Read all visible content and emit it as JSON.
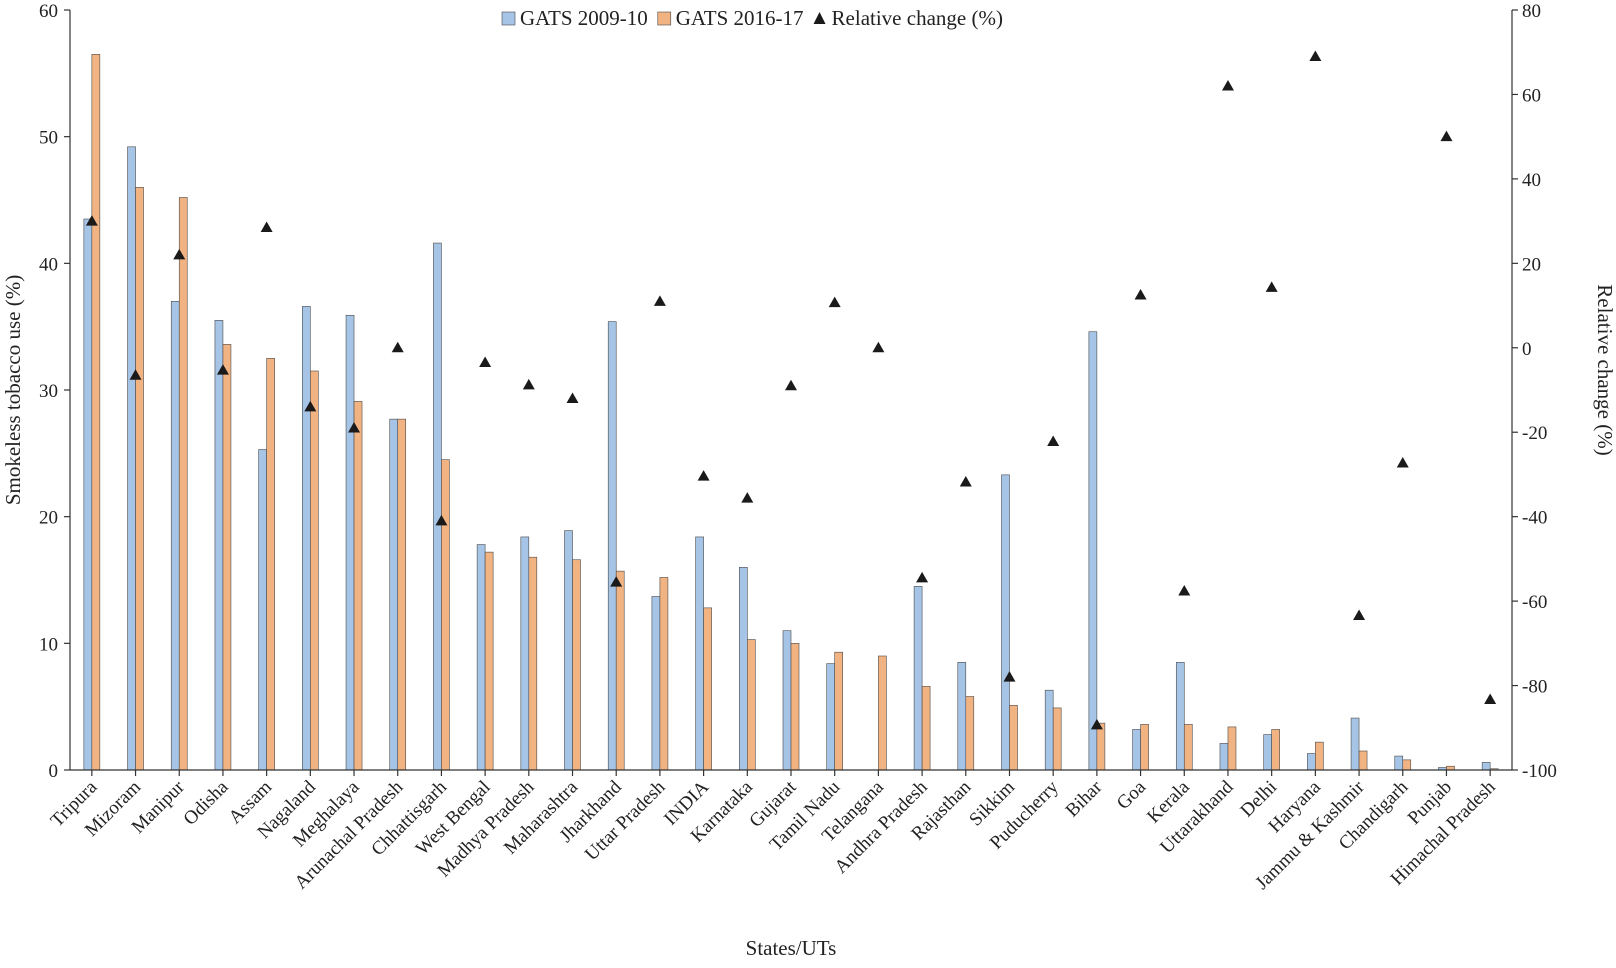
{
  "chart_data": {
    "type": "bar",
    "title": "",
    "xlabel": "States/UTs",
    "ylabel": "Smokeless tobacco use (%)",
    "y2label": "Relative change (%)",
    "ylim": [
      0,
      60
    ],
    "y2lim": [
      -100,
      80
    ],
    "yticks": [
      "0",
      "10",
      "20",
      "30",
      "40",
      "50",
      "60"
    ],
    "y2ticks": [
      "-100",
      "-80",
      "-60",
      "-40",
      "-20",
      "0",
      "20",
      "40",
      "60",
      "80"
    ],
    "legend_position": "top-center",
    "categories": [
      "Tripura",
      "Mizoram",
      "Manipur",
      "Odisha",
      "Assam",
      "Nagaland",
      "Meghalaya",
      "Arunachal Pradesh",
      "Chhattisgarh",
      "West Bengal",
      "Madhya Pradesh",
      "Maharashtra",
      "Jharkhand",
      "Uttar Pradesh",
      "INDIA",
      "Karnataka",
      "Gujarat",
      "Tamil Nadu",
      "Telangana",
      "Andhra Pradesh",
      "Rajasthan",
      "Sikkim",
      "Puducherry",
      "Bihar",
      "Goa",
      "Kerala",
      "Uttarakhand",
      "Delhi",
      "Haryana",
      "Jammu & Kashmir",
      "Chandigarh",
      "Punjab",
      "Himachal Pradesh"
    ],
    "series": [
      {
        "name": "GATS 2009-10",
        "kind": "bar",
        "axis": "left",
        "color": "#a6c4e6",
        "values": [
          43.5,
          49.2,
          37.0,
          35.5,
          25.3,
          36.6,
          35.9,
          27.7,
          41.6,
          17.8,
          18.4,
          18.9,
          35.4,
          13.7,
          18.4,
          16.0,
          11.0,
          8.4,
          null,
          14.5,
          8.5,
          23.3,
          6.3,
          34.6,
          3.2,
          8.5,
          2.1,
          2.8,
          1.3,
          4.1,
          1.1,
          0.2,
          0.6
        ]
      },
      {
        "name": "GATS 2016-17",
        "kind": "bar",
        "axis": "left",
        "color": "#f2b382",
        "values": [
          56.5,
          46.0,
          45.2,
          33.6,
          32.5,
          31.5,
          29.1,
          27.7,
          24.5,
          17.2,
          16.8,
          16.6,
          15.7,
          15.2,
          12.8,
          10.3,
          10.0,
          9.3,
          9.0,
          6.6,
          5.8,
          5.1,
          4.9,
          3.7,
          3.6,
          3.6,
          3.4,
          3.2,
          2.2,
          1.5,
          0.8,
          0.3,
          0.1
        ]
      },
      {
        "name": "Relative change (%)",
        "kind": "marker",
        "axis": "right",
        "color": "#1a1a1a",
        "values": [
          30,
          -6.5,
          22,
          -5.3,
          28.5,
          -14,
          -19,
          0,
          -41,
          -3.5,
          -8.8,
          -12,
          -55.5,
          11,
          -30.4,
          -35.6,
          -9,
          10.7,
          0,
          -54.5,
          -31.8,
          -78,
          -22.2,
          -89.3,
          12.5,
          -57.6,
          62,
          14.3,
          69,
          -63.4,
          -27.3,
          50,
          -83.3
        ]
      }
    ]
  }
}
